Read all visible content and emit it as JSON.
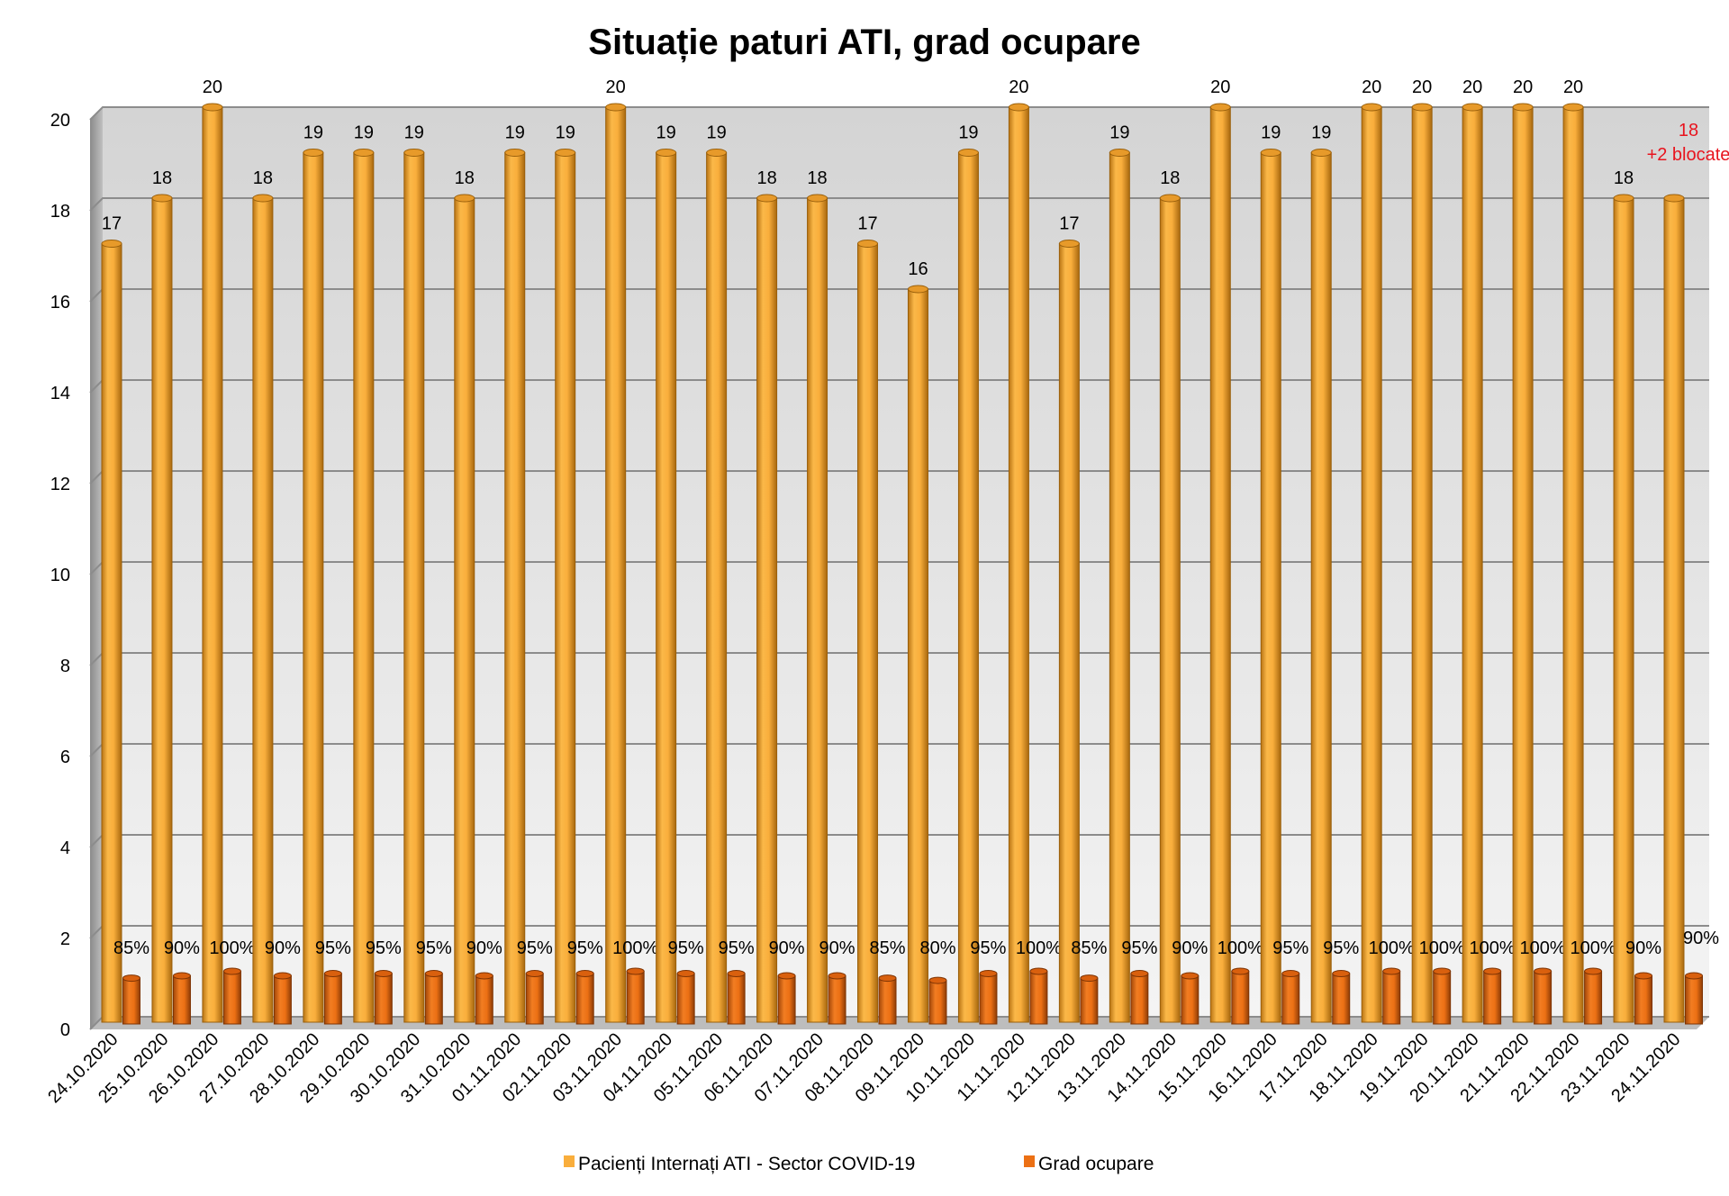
{
  "chart_data": {
    "type": "bar",
    "title": "Situație paturi ATI, grad ocupare",
    "xlabel": "",
    "ylabel": "",
    "ylim": [
      0,
      20
    ],
    "yticks": [
      0,
      2,
      4,
      6,
      8,
      10,
      12,
      14,
      16,
      18,
      20
    ],
    "grid": true,
    "legend_position": "bottom",
    "categories": [
      "24.10.2020",
      "25.10.2020",
      "26.10.2020",
      "27.10.2020",
      "28.10.2020",
      "29.10.2020",
      "30.10.2020",
      "31.10.2020",
      "01.11.2020",
      "02.11.2020",
      "03.11.2020",
      "04.11.2020",
      "05.11.2020",
      "06.11.2020",
      "07.11.2020",
      "08.11.2020",
      "09.11.2020",
      "10.11.2020",
      "11.11.2020",
      "12.11.2020",
      "13.11.2020",
      "14.11.2020",
      "15.11.2020",
      "16.11.2020",
      "17.11.2020",
      "18.11.2020",
      "19.11.2020",
      "20.11.2020",
      "21.11.2020",
      "22.11.2020",
      "23.11.2020",
      "24.11.2020"
    ],
    "series": [
      {
        "name": "Pacienți Internați ATI - Sector COVID-19",
        "color": "#f9ae3c",
        "values": [
          17,
          18,
          20,
          18,
          19,
          19,
          19,
          18,
          19,
          19,
          20,
          19,
          19,
          18,
          18,
          17,
          16,
          19,
          20,
          17,
          19,
          18,
          20,
          19,
          19,
          20,
          20,
          20,
          20,
          20,
          18,
          18
        ]
      },
      {
        "name": "Grad ocupare",
        "color": "#ec7014",
        "values": [
          0.85,
          0.9,
          1.0,
          0.9,
          0.95,
          0.95,
          0.95,
          0.9,
          0.95,
          0.95,
          1.0,
          0.95,
          0.95,
          0.9,
          0.9,
          0.85,
          0.8,
          0.95,
          1.0,
          0.85,
          0.95,
          0.9,
          1.0,
          0.95,
          0.95,
          1.0,
          1.0,
          1.0,
          1.0,
          1.0,
          0.9,
          0.9
        ],
        "labels": [
          "85%",
          "90%",
          "100%",
          "90%",
          "95%",
          "95%",
          "95%",
          "90%",
          "95%",
          "95%",
          "100%",
          "95%",
          "95%",
          "90%",
          "90%",
          "85%",
          "80%",
          "95%",
          "100%",
          "85%",
          "95%",
          "90%",
          "100%",
          "95%",
          "95%",
          "100%",
          "100%",
          "100%",
          "100%",
          "100%",
          "90%",
          "90%"
        ]
      }
    ],
    "annotation": {
      "category": "24.11.2020",
      "lines": [
        "18",
        "+2 blocate"
      ],
      "color": "#e8141e"
    }
  }
}
